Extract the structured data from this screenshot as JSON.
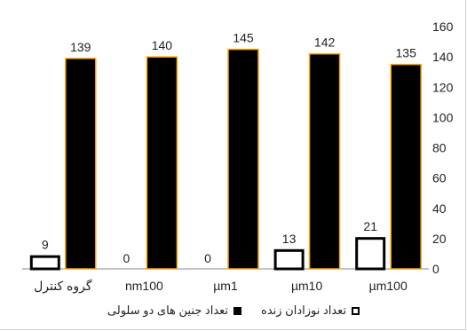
{
  "chart_data": {
    "type": "bar",
    "categories": [
      "گروه کنترل",
      "nm100",
      "µm1",
      "µm10",
      "µm100"
    ],
    "series": [
      {
        "name": "تعداد نوزادان زنده",
        "values": [
          9,
          0,
          0,
          13,
          21
        ],
        "color": "#ffffff",
        "border": "#000000"
      },
      {
        "name": "تعداد جنین های دو سلولی",
        "values": [
          139,
          140,
          145,
          142,
          135
        ],
        "color": "#000000",
        "border": "#ffa500"
      }
    ],
    "ylim": [
      0,
      160
    ],
    "yticks": [
      0,
      20,
      40,
      60,
      80,
      100,
      120,
      140,
      160
    ],
    "y_axis_side": "right",
    "grid": false,
    "legend_position": "bottom",
    "title": "",
    "xlabel": "",
    "ylabel": ""
  }
}
